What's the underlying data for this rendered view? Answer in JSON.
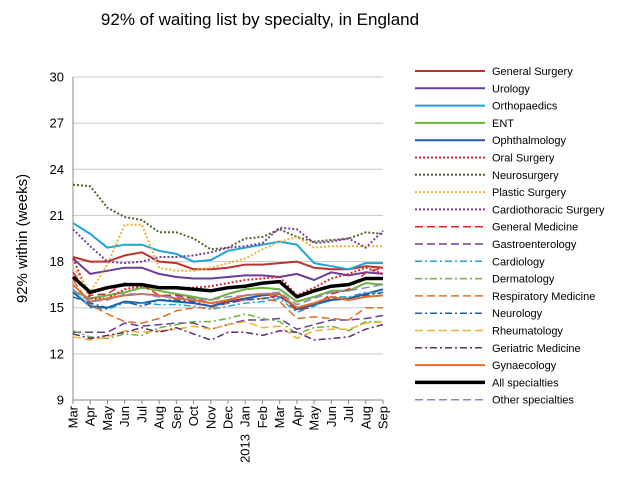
{
  "chart_data": {
    "type": "line",
    "title": "92% of waiting list by specialty, in England",
    "xlabel": "",
    "ylabel": "92% within (weeks)",
    "ylim": [
      9,
      30
    ],
    "yticks": [
      9,
      12,
      15,
      18,
      21,
      24,
      27,
      30
    ],
    "grid": "horizontal",
    "legend": "right",
    "categories": [
      "Mar",
      "Apr",
      "May",
      "Jun",
      "Jul",
      "Aug",
      "Sep",
      "Oct",
      "Nov",
      "Dec",
      "Jan",
      "Feb",
      "Mar",
      "Apr",
      "May",
      "Jun",
      "Jul",
      "Aug",
      "Sep"
    ],
    "year_label": "2013",
    "year_label_index": 10,
    "series": [
      {
        "name": "General Surgery",
        "color": "#c0302b",
        "dash": "solid",
        "width": 2,
        "values": [
          18.3,
          18.0,
          18.0,
          18.4,
          18.6,
          18.0,
          17.9,
          17.5,
          17.5,
          17.6,
          17.8,
          17.8,
          17.9,
          18.0,
          17.6,
          17.5,
          17.5,
          17.7,
          17.6
        ]
      },
      {
        "name": "Urology",
        "color": "#6a3d9a",
        "dash": "solid",
        "width": 2,
        "values": [
          18.2,
          17.2,
          17.4,
          17.6,
          17.6,
          17.2,
          17.0,
          16.9,
          16.9,
          17.0,
          17.1,
          17.1,
          17.0,
          17.2,
          16.8,
          17.3,
          17.1,
          17.3,
          17.2
        ]
      },
      {
        "name": "Orthopaedics",
        "color": "#1ea5d6",
        "dash": "solid",
        "width": 2,
        "values": [
          20.5,
          19.8,
          18.9,
          19.1,
          19.1,
          18.7,
          18.5,
          18.0,
          18.1,
          18.7,
          18.9,
          19.1,
          19.3,
          19.1,
          17.9,
          17.7,
          17.5,
          17.9,
          17.9
        ]
      },
      {
        "name": "ENT",
        "color": "#6cb33f",
        "dash": "solid",
        "width": 2,
        "values": [
          16.1,
          15.6,
          15.8,
          16.0,
          16.3,
          16.1,
          15.9,
          15.7,
          15.5,
          15.9,
          16.2,
          16.3,
          16.2,
          15.4,
          15.7,
          16.1,
          16.1,
          16.6,
          16.5
        ]
      },
      {
        "name": "Ophthalmology",
        "color": "#1f5fa6",
        "dash": "solid",
        "width": 2,
        "values": [
          16.0,
          15.1,
          15.0,
          15.4,
          15.3,
          15.5,
          15.4,
          15.3,
          15.1,
          15.4,
          15.6,
          15.8,
          15.9,
          14.9,
          15.2,
          15.5,
          15.6,
          15.9,
          16.2
        ]
      },
      {
        "name": "Oral Surgery",
        "color": "#d8262b",
        "dash": "dot",
        "width": 2,
        "values": [
          18.2,
          15.6,
          15.6,
          16.2,
          16.4,
          16.3,
          16.3,
          16.3,
          16.4,
          16.6,
          16.8,
          16.9,
          17.0,
          15.8,
          16.3,
          16.9,
          17.2,
          17.6,
          17.2
        ]
      },
      {
        "name": "Neurosurgery",
        "color": "#4f6228",
        "dash": "dot",
        "width": 2,
        "values": [
          23.0,
          22.9,
          21.5,
          20.9,
          20.7,
          19.9,
          19.9,
          19.5,
          18.8,
          18.9,
          19.5,
          19.6,
          20.1,
          19.6,
          19.3,
          19.4,
          19.5,
          19.9,
          19.8
        ]
      },
      {
        "name": "Plastic Surgery",
        "color": "#f2b134",
        "dash": "dot",
        "width": 2,
        "values": [
          17.6,
          16.0,
          17.8,
          20.4,
          20.4,
          17.6,
          17.4,
          17.4,
          17.6,
          17.9,
          18.2,
          18.8,
          19.3,
          19.6,
          18.9,
          19.0,
          19.0,
          19.0,
          19.0
        ]
      },
      {
        "name": "Cardiothoracic Surgery",
        "color": "#7a3f98",
        "dash": "dot",
        "width": 2,
        "values": [
          20.1,
          19.0,
          18.0,
          17.9,
          18.0,
          18.3,
          18.3,
          18.4,
          18.6,
          18.9,
          19.0,
          19.2,
          20.2,
          20.1,
          19.2,
          19.3,
          19.5,
          18.9,
          20.0
        ]
      },
      {
        "name": "General Medicine",
        "color": "#d8262b",
        "dash": "longdash",
        "width": 1.5,
        "values": [
          17.3,
          15.8,
          15.9,
          16.6,
          16.5,
          15.8,
          15.8,
          15.6,
          15.3,
          15.4,
          15.5,
          15.6,
          15.8,
          14.8,
          15.1,
          15.9,
          16.2,
          17.3,
          17.6
        ]
      },
      {
        "name": "Gastroenterology",
        "color": "#6a3d9a",
        "dash": "longdash",
        "width": 1.5,
        "values": [
          13.4,
          13.4,
          13.4,
          14.0,
          13.8,
          13.9,
          14.0,
          14.0,
          13.6,
          13.9,
          14.2,
          14.2,
          14.3,
          13.6,
          13.9,
          14.2,
          14.2,
          14.3,
          14.5
        ]
      },
      {
        "name": "Cardiology",
        "color": "#1ea5d6",
        "dash": "dashdot",
        "width": 1.5,
        "values": [
          16.2,
          15.0,
          14.9,
          15.3,
          15.3,
          15.2,
          15.2,
          15.1,
          14.9,
          15.1,
          15.3,
          15.4,
          15.6,
          14.7,
          15.1,
          15.7,
          15.7,
          16.0,
          15.9
        ]
      },
      {
        "name": "Dermatology",
        "color": "#6cb33f",
        "dash": "dashdot",
        "width": 1.5,
        "values": [
          13.5,
          13.1,
          13.0,
          13.3,
          13.2,
          13.7,
          13.9,
          14.1,
          14.1,
          14.3,
          14.6,
          14.3,
          14.1,
          13.3,
          13.7,
          13.8,
          13.5,
          14.1,
          14.1
        ]
      },
      {
        "name": "Respiratory Medicine",
        "color": "#e46c28",
        "dash": "longdash",
        "width": 1.5,
        "values": [
          16.8,
          15.2,
          14.6,
          14.1,
          14.0,
          14.3,
          14.8,
          15.0,
          15.0,
          15.3,
          15.5,
          15.6,
          15.4,
          14.3,
          14.4,
          14.3,
          14.2,
          15.0,
          15.0
        ]
      },
      {
        "name": "Neurology",
        "color": "#1f5fa6",
        "dash": "dashdot",
        "width": 1.5,
        "values": [
          15.7,
          15.3,
          15.0,
          15.4,
          15.1,
          15.5,
          15.5,
          15.4,
          15.1,
          15.3,
          15.5,
          15.6,
          15.7,
          15.0,
          15.2,
          15.6,
          15.6,
          15.8,
          16.0
        ]
      },
      {
        "name": "Rheumatology",
        "color": "#f2b134",
        "dash": "longdash",
        "width": 1.5,
        "values": [
          13.1,
          12.9,
          13.1,
          13.5,
          13.4,
          13.5,
          13.6,
          13.8,
          13.6,
          13.9,
          14.1,
          13.7,
          13.8,
          13.0,
          13.5,
          13.6,
          13.6,
          14.0,
          14.1
        ]
      },
      {
        "name": "Geriatric Medicine",
        "color": "#5b2c6f",
        "dash": "dashdot",
        "width": 1.5,
        "values": [
          13.3,
          13.0,
          13.2,
          13.4,
          13.7,
          13.4,
          13.7,
          13.3,
          12.9,
          13.4,
          13.4,
          13.2,
          13.5,
          13.4,
          12.9,
          13.0,
          13.1,
          13.6,
          13.9
        ]
      },
      {
        "name": "Gynaecology",
        "color": "#e46c28",
        "dash": "solid",
        "width": 2,
        "values": [
          16.5,
          15.4,
          15.6,
          15.8,
          15.9,
          15.8,
          15.6,
          15.5,
          15.3,
          15.5,
          15.8,
          15.9,
          15.9,
          15.0,
          15.3,
          15.7,
          15.5,
          15.7,
          15.8
        ]
      },
      {
        "name": "All specialties",
        "color": "#000000",
        "dash": "solid",
        "width": 3.5,
        "values": [
          17.0,
          16.0,
          16.3,
          16.5,
          16.5,
          16.3,
          16.3,
          16.2,
          16.1,
          16.3,
          16.4,
          16.6,
          16.7,
          15.7,
          16.1,
          16.4,
          16.5,
          16.9,
          16.9
        ]
      },
      {
        "name": "Other specialties",
        "color": "#8e86c7",
        "dash": "longdash",
        "width": 1.5,
        "values": [
          16.1,
          15.4,
          15.5,
          15.9,
          15.9,
          15.7,
          15.7,
          15.6,
          15.5,
          15.7,
          15.8,
          15.9,
          16.0,
          15.2,
          15.6,
          16.0,
          16.1,
          16.3,
          16.5
        ]
      }
    ]
  }
}
